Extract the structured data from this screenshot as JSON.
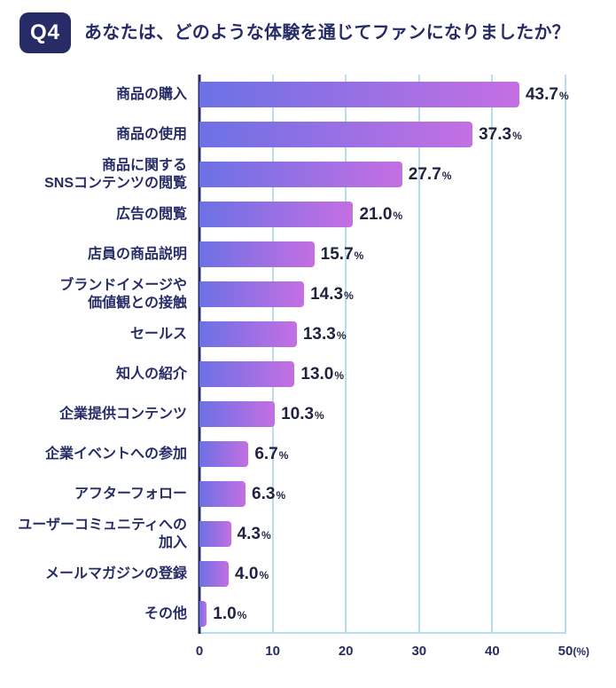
{
  "header": {
    "badge_label": "Q4",
    "title": "あなたは、どのような体験を通じてファンになりましたか？"
  },
  "chart_data": {
    "type": "bar",
    "orientation": "horizontal",
    "title": "あなたは、どのような体験を通じてファンになりましたか？",
    "categories": [
      "商品の購入",
      "商品の使用",
      "商品に関するSNSコンテンツの閲覧",
      "広告の閲覧",
      "店員の商品説明",
      "ブランドイメージや価値観との接触",
      "セールス",
      "知人の紹介",
      "企業提供コンテンツ",
      "企業イベントへの参加",
      "アフターフォロー",
      "ユーザーコミュニティへの加入",
      "メールマガジンの登録",
      "その他"
    ],
    "label_lines": [
      [
        "商品の購入"
      ],
      [
        "商品の使用"
      ],
      [
        "商品に関する",
        "SNSコンテンツの閲覧"
      ],
      [
        "広告の閲覧"
      ],
      [
        "店員の商品説明"
      ],
      [
        "ブランドイメージや",
        "価値観との接触"
      ],
      [
        "セールス"
      ],
      [
        "知人の紹介"
      ],
      [
        "企業提供コンテンツ"
      ],
      [
        "企業イベントへの参加"
      ],
      [
        "アフターフォロー"
      ],
      [
        "ユーザーコミュニティへの",
        "加入"
      ],
      [
        "メールマガジンの登録"
      ],
      [
        "その他"
      ]
    ],
    "values": [
      43.7,
      37.3,
      27.7,
      21.0,
      15.7,
      14.3,
      13.3,
      13.0,
      10.3,
      6.7,
      6.3,
      4.3,
      4.0,
      1.0
    ],
    "value_labels": [
      "43.7",
      "37.3",
      "27.7",
      "21.0",
      "15.7",
      "14.3",
      "13.3",
      "13.0",
      "10.3",
      "6.7",
      "6.3",
      "4.3",
      "4.0",
      "1.0"
    ],
    "unit": "%",
    "xlabel": "",
    "ylabel": "",
    "xlim": [
      0,
      50
    ],
    "x_ticks": [
      "0",
      "10",
      "20",
      "30",
      "40",
      "50"
    ],
    "x_axis_suffix": "(%)",
    "grid": true,
    "legend": false,
    "bar_gradient": [
      "#6b71e5",
      "#c46fe2"
    ]
  },
  "colors": {
    "navy": "#272c67",
    "gridline": "#b7ddf1",
    "value_text": "#1f2340",
    "background": "#ffffff"
  }
}
